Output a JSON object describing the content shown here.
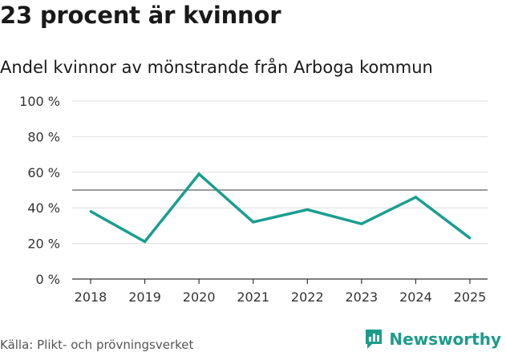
{
  "header": {
    "title": "23 procent är kvinnor",
    "subtitle": "Andel kvinnor av mönstrande från Arboga kommun"
  },
  "footer": {
    "source": "Källa: Plikt- och prövningsverket",
    "brand": "Newsworthy"
  },
  "colors": {
    "series": "#1a9e90",
    "brand": "#1c9b8c",
    "reference_line": "#7a7a7a",
    "grid": "#dddddd"
  },
  "chart_data": {
    "type": "line",
    "title": "23 procent är kvinnor",
    "subtitle": "Andel kvinnor av mönstrande från Arboga kommun",
    "xlabel": "",
    "ylabel": "",
    "categories": [
      "2018",
      "2019",
      "2020",
      "2021",
      "2022",
      "2023",
      "2024",
      "2025"
    ],
    "series": [
      {
        "name": "Andel kvinnor",
        "values": [
          38,
          21,
          59,
          32,
          39,
          31,
          46,
          23
        ]
      }
    ],
    "ylim": [
      0,
      100
    ],
    "yticks": [
      0,
      20,
      40,
      60,
      80,
      100
    ],
    "ytick_labels": [
      "0 %",
      "20 %",
      "40 %",
      "60 %",
      "80 %",
      "100 %"
    ],
    "reference_line": 50,
    "grid": true
  }
}
